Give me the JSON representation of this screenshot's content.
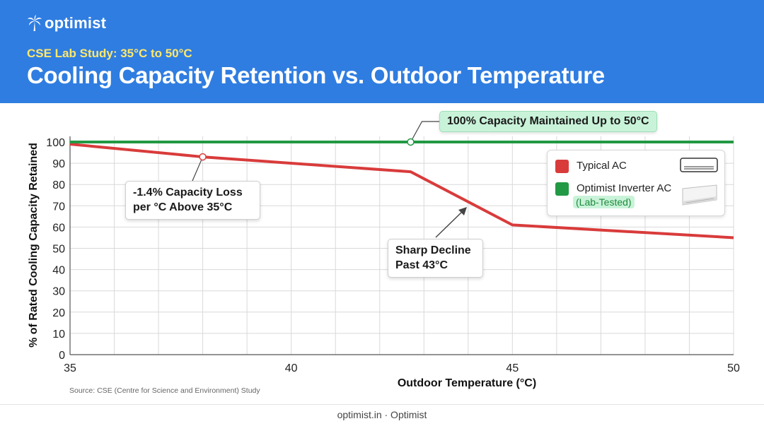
{
  "brand": {
    "logo_text": "optimist",
    "logo_icon": "palm-tree-icon"
  },
  "header": {
    "subtitle": "CSE Lab Study: 35°C to 50°C",
    "title": "Cooling Capacity Retention vs. Outdoor Temperature"
  },
  "colors": {
    "header_bg": "#2f7de1",
    "subtitle": "#ffe86a",
    "typical": "#d93b3b",
    "optimist": "#229944",
    "highlight": "#c9f3d9"
  },
  "chart_data": {
    "type": "line",
    "xlabel": "Outdoor Temperature (°C)",
    "ylabel": "% of Rated Cooling Capacity Retained",
    "xlim": [
      35,
      50
    ],
    "ylim": [
      0,
      100
    ],
    "x_ticks": [
      "35",
      "40",
      "45",
      "50"
    ],
    "y_ticks": [
      "0",
      "10",
      "20",
      "30",
      "40",
      "50",
      "60",
      "70",
      "80",
      "90",
      "100"
    ],
    "grid": true,
    "legend_position": "top-right",
    "series": [
      {
        "name": "Typical AC",
        "color": "#d93b3b",
        "x": [
          35,
          38,
          42.7,
          45,
          50
        ],
        "y": [
          99,
          93,
          86,
          61,
          55
        ]
      },
      {
        "name": "Optimist Inverter AC",
        "color": "#229944",
        "x": [
          35,
          50
        ],
        "y": [
          100,
          100
        ]
      }
    ],
    "annotations": {
      "loss_line1": "-1.4% Capacity Loss",
      "loss_line2": "per °C Above 35°C",
      "decline_line1": "Sharp Decline",
      "decline_line2": "Past 43°C",
      "maintained": "100% Capacity Maintained Up to 50°C"
    }
  },
  "legend": {
    "typical_label": "Typical AC",
    "typical_icon": "split-ac-outline-icon",
    "optimist_label": "Optimist Inverter AC",
    "optimist_sub": "(Lab-Tested)",
    "optimist_icon": "split-ac-unit-icon"
  },
  "source": "Source: CSE (Centre for Science and Environment) Study",
  "footer": "optimist.in · Optimist"
}
